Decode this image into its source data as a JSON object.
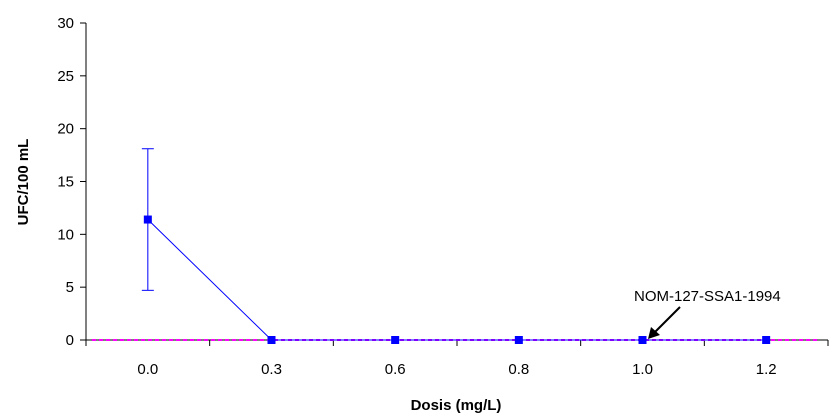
{
  "chart_data": {
    "type": "line",
    "title": "",
    "xlabel": "Dosis (mg/L)",
    "ylabel": "UFC/100 mL",
    "categories": [
      "0.0",
      "0.3",
      "0.6",
      "0.8",
      "1.0",
      "1.2"
    ],
    "ylim": [
      0,
      30
    ],
    "yticks": [
      "0",
      "5",
      "10",
      "15",
      "20",
      "25",
      "30"
    ],
    "grid": false,
    "legend": "none",
    "series": [
      {
        "values": [
          11.4,
          0,
          0,
          0,
          0,
          0
        ],
        "error": [
          6.7,
          0,
          0,
          0,
          0,
          0
        ],
        "color": "#0000ff"
      }
    ],
    "reference_line": {
      "label": "NOM-127-SSA1-1994",
      "value": 0,
      "color": "#ff00ff"
    }
  }
}
